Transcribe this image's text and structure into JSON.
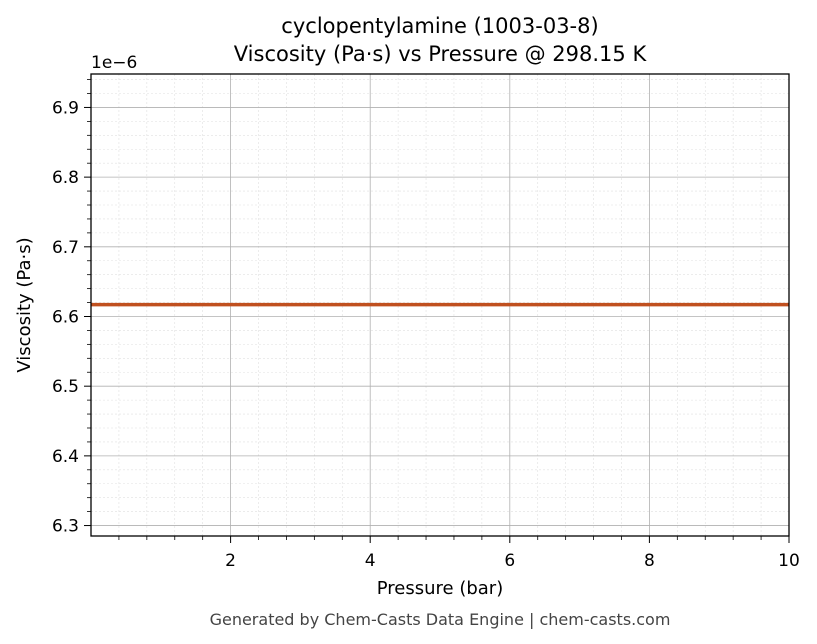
{
  "chart_data": {
    "type": "line",
    "title": "cyclopentylamine (1003-03-8)",
    "subtitle": "Viscosity (Pa·s) vs Pressure @ 298.15 K",
    "xlabel": "Pressure (bar)",
    "ylabel": "Viscosity (Pa·s)",
    "y_offset_label": "1e−6",
    "xlim": [
      0,
      10
    ],
    "ylim": [
      6.285,
      6.948
    ],
    "x_ticks": [
      2,
      4,
      6,
      8,
      10
    ],
    "x_tick_labels": [
      "2",
      "4",
      "6",
      "8",
      "10"
    ],
    "x_minor_step": 0.4,
    "y_ticks": [
      6.3,
      6.4,
      6.5,
      6.6,
      6.7,
      6.8,
      6.9
    ],
    "y_tick_labels": [
      "6.3",
      "6.4",
      "6.5",
      "6.6",
      "6.7",
      "6.8",
      "6.9"
    ],
    "y_minor_step": 0.02,
    "grid": true,
    "series": [
      {
        "color": "#c0501f",
        "x": [
          0,
          10
        ],
        "y": [
          6.617,
          6.617
        ]
      }
    ]
  },
  "footer": "Generated by Chem-Casts Data Engine | chem-casts.com",
  "colors": {
    "line": "#c0501f",
    "major_grid": "#b0b0b0",
    "minor_grid": "#e0e0e0",
    "axes": "#000000",
    "footer_text": "#444444"
  }
}
